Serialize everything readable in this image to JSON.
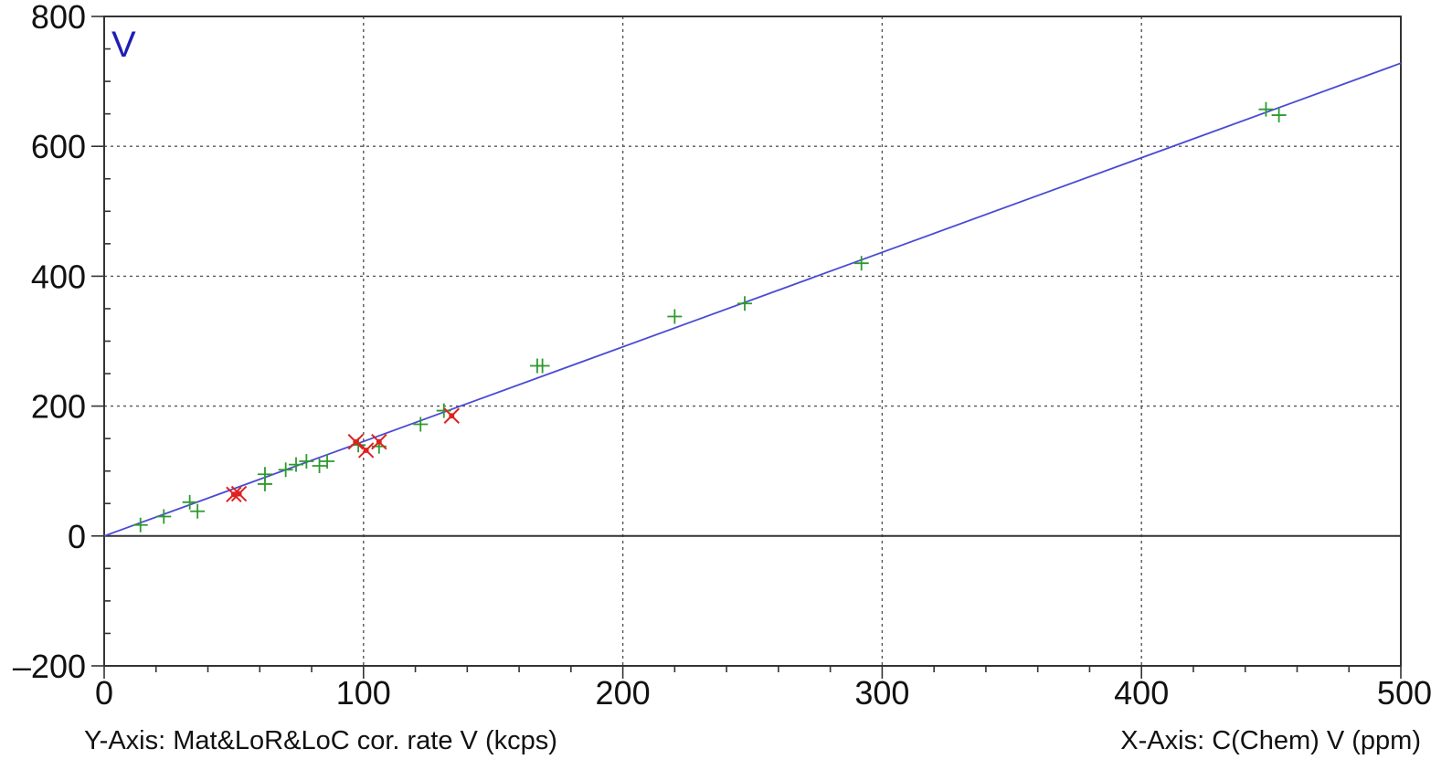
{
  "chart_data": {
    "type": "scatter",
    "title": "V",
    "xlabel": "X-Axis: C(Chem) V (ppm)",
    "ylabel": "Y-Axis: Mat&LoR&LoC cor. rate V (kcps)",
    "xlim": [
      0,
      500
    ],
    "ylim": [
      -200,
      800
    ],
    "x_ticks": [
      0,
      100,
      200,
      300,
      400,
      500
    ],
    "y_ticks": [
      -200,
      0,
      200,
      400,
      600,
      800
    ],
    "x_tick_labels": [
      "0",
      "100",
      "200",
      "300",
      "400",
      "500"
    ],
    "y_tick_labels": [
      "–200",
      "0",
      "200",
      "400",
      "600",
      "800"
    ],
    "x_minor_step": 20,
    "y_minor_step": 50,
    "grid": true,
    "grid_style": "dotted",
    "legend": "none",
    "colors": {
      "line": "#4a4ad6",
      "included": "#2e9a2e",
      "excluded": "#e02020",
      "title": "#1f1fb4",
      "axis": "#333333"
    },
    "series": [
      {
        "kind": "points",
        "marker": "plus",
        "x": [
          14,
          23,
          33,
          36,
          62,
          62,
          70,
          74,
          78,
          83,
          86,
          98,
          106,
          122,
          131,
          167,
          169,
          220,
          247,
          292,
          448,
          453
        ],
        "y": [
          17,
          30,
          52,
          38,
          95,
          80,
          102,
          110,
          115,
          108,
          115,
          140,
          138,
          172,
          193,
          262,
          262,
          338,
          358,
          420,
          657,
          648
        ]
      },
      {
        "kind": "points",
        "marker": "cross",
        "x": [
          50,
          52,
          97,
          101,
          106,
          134
        ],
        "y": [
          64,
          65,
          145,
          132,
          145,
          185
        ]
      },
      {
        "kind": "line",
        "x": [
          0,
          500
        ],
        "y": [
          0,
          728
        ]
      }
    ]
  }
}
